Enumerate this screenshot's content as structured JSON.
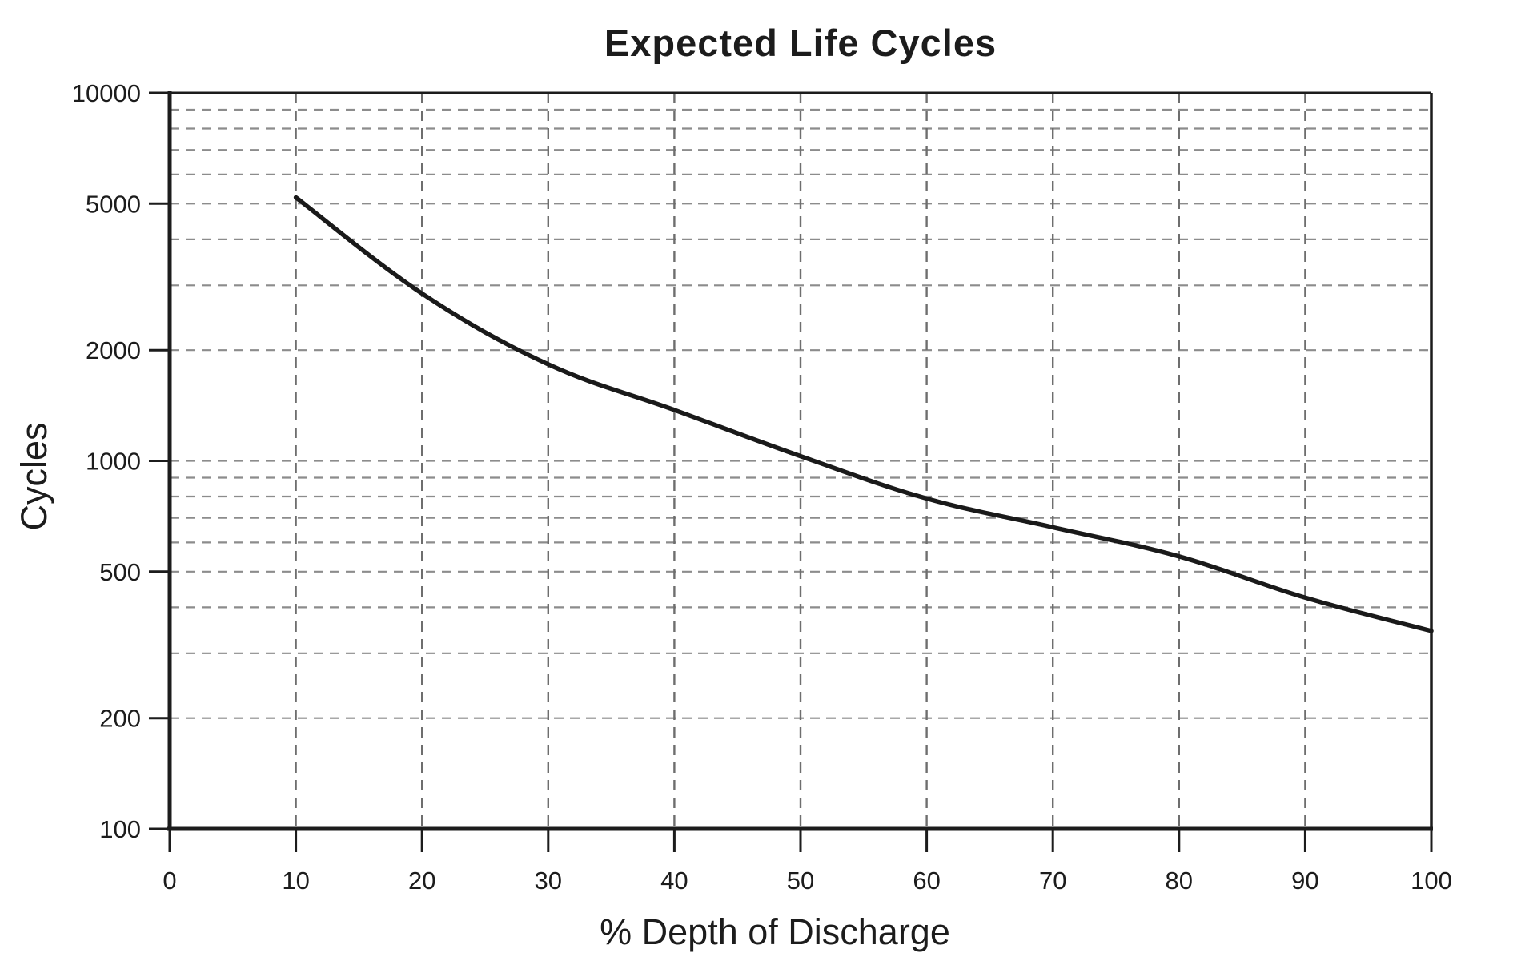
{
  "chart_data": {
    "type": "line",
    "title": "Expected Life Cycles",
    "xlabel": "% Depth of Discharge",
    "ylabel": "Cycles",
    "x_scale": "linear",
    "y_scale": "log",
    "xlim": [
      0,
      100
    ],
    "ylim": [
      100,
      10000
    ],
    "x": [
      10,
      20,
      30,
      40,
      50,
      60,
      70,
      80,
      90,
      100
    ],
    "values": [
      5200,
      2850,
      1830,
      1375,
      1030,
      790,
      660,
      550,
      425,
      345
    ],
    "x_ticks": [
      0,
      10,
      20,
      30,
      40,
      50,
      60,
      70,
      80,
      90,
      100
    ],
    "x_tick_labels": [
      "0",
      "10",
      "20",
      "30",
      "40",
      "50",
      "60",
      "70",
      "80",
      "90",
      "100"
    ],
    "y_ticks": [
      100,
      200,
      500,
      1000,
      2000,
      5000,
      10000
    ],
    "y_tick_labels": [
      "100",
      "200",
      "500",
      "1000",
      "2000",
      "5000",
      "10000"
    ],
    "h_gridlines": [
      200,
      300,
      400,
      500,
      600,
      700,
      800,
      900,
      1000,
      2000,
      3000,
      4000,
      5000,
      6000,
      7000,
      8000,
      9000
    ],
    "v_gridlines": [
      10,
      20,
      30,
      40,
      50,
      60,
      70,
      80,
      90
    ],
    "grid_style": "dashed",
    "legend": "none",
    "colors": {
      "background": "#ffffff",
      "line": "#1a1a1a",
      "axis": "#1c1c1c",
      "h_grid": "#8c8c8c",
      "v_grid": "#6e6e6e",
      "text": "#1c1c1c"
    }
  }
}
